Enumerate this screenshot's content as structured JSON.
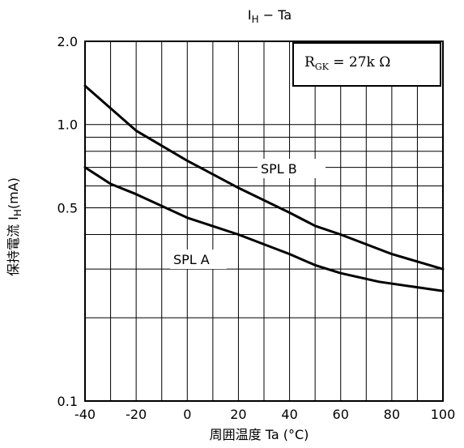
{
  "chart_data": {
    "type": "line",
    "title_main": "I",
    "title_sub": "H",
    "title_rest": " − Ta",
    "xlabel": "周囲温度  Ta (°C)",
    "ylabel_main": "保持電流 I",
    "ylabel_sub": "H",
    "ylabel_rest": "(mA)",
    "xlim": [
      -40,
      100
    ],
    "ylim": [
      0.1,
      2.0
    ],
    "y_scale": "log",
    "x_ticks": [
      -40,
      -20,
      0,
      20,
      40,
      60,
      80,
      100
    ],
    "x_tick_labels": [
      "-40",
      "-20",
      "0",
      "20",
      "40",
      "60",
      "80",
      "100"
    ],
    "y_tick_values": [
      0.1,
      0.5,
      1.0,
      2.0
    ],
    "y_tick_labels": [
      "0.1",
      "0.5",
      "1.0",
      "2.0"
    ],
    "grid": true,
    "annotation": {
      "prefix": "R",
      "subscript": "GK",
      "suffix": " = 27k Ω",
      "placement": "top-right"
    },
    "series": [
      {
        "name": "SPL B",
        "x": [
          -40,
          -20,
          0,
          20,
          40,
          50,
          60,
          80,
          100
        ],
        "y": [
          1.38,
          0.95,
          0.74,
          0.59,
          0.48,
          0.43,
          0.4,
          0.34,
          0.3
        ]
      },
      {
        "name": "SPL A",
        "x": [
          -40,
          -30,
          -20,
          0,
          20,
          40,
          50,
          60,
          75,
          100
        ],
        "y": [
          0.7,
          0.61,
          0.56,
          0.46,
          0.4,
          0.34,
          0.31,
          0.29,
          0.27,
          0.25
        ]
      }
    ]
  }
}
